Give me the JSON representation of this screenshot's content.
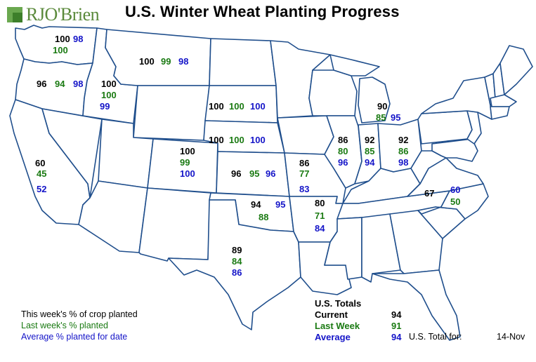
{
  "title": "U.S. Winter Wheat Planting Progress",
  "logo_text": "RJO'Brien",
  "colors": {
    "current": "#000000",
    "last_week": "#1a7a12",
    "average": "#1414c8",
    "border": "#1f4e8c"
  },
  "states": [
    {
      "state": "WA",
      "current": "100",
      "last_week": "100",
      "average": "98"
    },
    {
      "state": "OR",
      "current": "96",
      "last_week": "94",
      "average": "98"
    },
    {
      "state": "ID",
      "current": "100",
      "last_week": "100",
      "average": "99"
    },
    {
      "state": "MT",
      "current": "100",
      "last_week": "99",
      "average": "98"
    },
    {
      "state": "SD",
      "current": "100",
      "last_week": "100",
      "average": "100"
    },
    {
      "state": "NE",
      "current": "100",
      "last_week": "100",
      "average": "100"
    },
    {
      "state": "CO",
      "current": "100",
      "last_week": "99",
      "average": "100"
    },
    {
      "state": "KS",
      "current": "96",
      "last_week": "95",
      "average": "96"
    },
    {
      "state": "CA",
      "current": "60",
      "last_week": "45",
      "average": "52"
    },
    {
      "state": "OK",
      "current": "94",
      "last_week": "88",
      "average": "95"
    },
    {
      "state": "TX",
      "current": "89",
      "last_week": "84",
      "average": "86"
    },
    {
      "state": "MO",
      "current": "86",
      "last_week": "77",
      "average": "83"
    },
    {
      "state": "IL",
      "current": "86",
      "last_week": "80",
      "average": "96"
    },
    {
      "state": "IN",
      "current": "92",
      "last_week": "85",
      "average": "94"
    },
    {
      "state": "OH",
      "current": "92",
      "last_week": "86",
      "average": "98"
    },
    {
      "state": "MI",
      "current": "90",
      "last_week": "85",
      "average": "95"
    },
    {
      "state": "AR",
      "current": "80",
      "last_week": "71",
      "average": "84"
    },
    {
      "state": "NC",
      "current": "67",
      "last_week": "50",
      "average": "60"
    }
  ],
  "legend": {
    "current": "This week's % of crop planted",
    "last_week": "Last week's % planted",
    "average": "Average % planted for date"
  },
  "totals": {
    "header": "U.S. Totals",
    "current_label": "Current",
    "current_value": "94",
    "last_week_label": "Last Week",
    "last_week_value": "91",
    "average_label": "Average",
    "average_value": "94",
    "total_for_label": "U.S. Total for:",
    "date": "14-Nov"
  }
}
